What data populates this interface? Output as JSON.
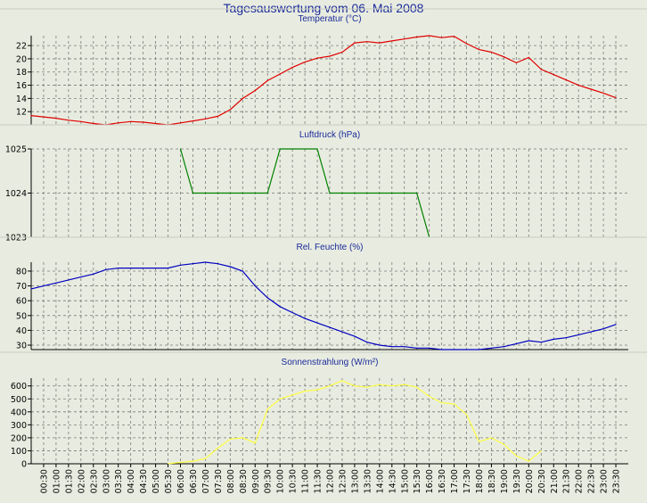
{
  "title": "Tagesauswertung vom 06. Mai 2008",
  "chart_data": [
    {
      "type": "line",
      "title": "Temperatur (°C)",
      "color": "#e00000",
      "ylim": [
        10,
        23.5
      ],
      "yticks": [
        12,
        14,
        16,
        18,
        20,
        22
      ],
      "x": [
        "00:00",
        "00:30",
        "01:00",
        "01:30",
        "02:00",
        "02:30",
        "03:00",
        "03:30",
        "04:00",
        "04:30",
        "05:00",
        "05:30",
        "06:00",
        "06:30",
        "07:00",
        "07:30",
        "08:00",
        "08:30",
        "09:00",
        "09:30",
        "10:00",
        "10:30",
        "11:00",
        "11:30",
        "12:00",
        "12:30",
        "13:00",
        "13:30",
        "14:00",
        "14:30",
        "15:00",
        "15:30",
        "16:00",
        "16:30",
        "17:00",
        "17:30",
        "18:00",
        "18:30",
        "19:00",
        "19:30",
        "20:00",
        "20:30",
        "21:00",
        "21:30",
        "22:00",
        "22:30",
        "23:00",
        "23:30"
      ],
      "values": [
        11.4,
        11.2,
        11.0,
        10.7,
        10.5,
        10.2,
        10.0,
        10.3,
        10.5,
        10.4,
        10.2,
        10.0,
        10.3,
        10.6,
        10.9,
        11.3,
        12.3,
        14.0,
        15.2,
        16.7,
        17.7,
        18.7,
        19.5,
        20.1,
        20.4,
        21.0,
        22.4,
        22.6,
        22.4,
        22.7,
        23.0,
        23.3,
        23.5,
        23.2,
        23.4,
        22.3,
        21.4,
        21.0,
        20.3,
        19.4,
        20.2,
        18.4,
        17.6,
        16.8,
        16.0,
        15.4,
        14.8,
        14.1
      ]
    },
    {
      "type": "line",
      "title": "Luftdruck (hPa)",
      "color": "#008000",
      "ylim": [
        1023,
        1025
      ],
      "yticks": [
        1023,
        1024,
        1025
      ],
      "x": [
        "06:00",
        "06:30",
        "07:00",
        "07:30",
        "08:00",
        "08:30",
        "09:00",
        "09:30",
        "10:00",
        "10:30",
        "11:00",
        "11:30",
        "12:00",
        "12:30",
        "13:00",
        "13:30",
        "14:00",
        "14:30",
        "15:00",
        "15:30",
        "16:00"
      ],
      "values": [
        1025,
        1024,
        1024,
        1024,
        1024,
        1024,
        1024,
        1024,
        1025,
        1025,
        1025,
        1025,
        1024,
        1024,
        1024,
        1024,
        1024,
        1024,
        1024,
        1024,
        1023
      ]
    },
    {
      "type": "line",
      "title": "Rel. Feuchte (%)",
      "color": "#0000c0",
      "ylim": [
        27,
        86
      ],
      "yticks": [
        30,
        40,
        50,
        60,
        70,
        80
      ],
      "x": [
        "00:00",
        "00:30",
        "01:00",
        "01:30",
        "02:00",
        "02:30",
        "03:00",
        "03:30",
        "04:00",
        "04:30",
        "05:00",
        "05:30",
        "06:00",
        "06:30",
        "07:00",
        "07:30",
        "08:00",
        "08:30",
        "09:00",
        "09:30",
        "10:00",
        "10:30",
        "11:00",
        "11:30",
        "12:00",
        "12:30",
        "13:00",
        "13:30",
        "14:00",
        "14:30",
        "15:00",
        "15:30",
        "16:00",
        "16:30",
        "17:00",
        "17:30",
        "18:00",
        "18:30",
        "19:00",
        "19:30",
        "20:00",
        "20:30",
        "21:00",
        "21:30",
        "22:00",
        "22:30",
        "23:00",
        "23:30"
      ],
      "values": [
        68,
        70,
        72,
        74,
        76,
        78,
        81,
        82,
        82,
        82,
        82,
        82,
        84,
        85,
        86,
        85,
        83,
        80,
        70,
        62,
        56,
        52,
        48,
        45,
        42,
        39,
        36,
        32,
        30,
        29,
        29,
        28,
        28,
        27,
        27,
        27,
        27,
        28,
        29,
        31,
        33,
        32,
        34,
        35,
        37,
        39,
        41,
        44
      ]
    },
    {
      "type": "line",
      "title": "Sonnenstrahlung (W/m²)",
      "color": "#ffff40",
      "ylim": [
        0,
        660
      ],
      "yticks": [
        0,
        100,
        200,
        300,
        400,
        500,
        600
      ],
      "x": [
        "05:30",
        "06:00",
        "06:30",
        "07:00",
        "07:30",
        "08:00",
        "08:30",
        "09:00",
        "09:30",
        "10:00",
        "10:30",
        "11:00",
        "11:30",
        "12:00",
        "12:30",
        "13:00",
        "13:30",
        "14:00",
        "14:30",
        "15:00",
        "15:30",
        "16:00",
        "16:30",
        "17:00",
        "17:30",
        "18:00",
        "18:30",
        "19:00",
        "19:30",
        "20:00",
        "20:30"
      ],
      "values": [
        0,
        10,
        20,
        40,
        120,
        190,
        200,
        160,
        420,
        500,
        530,
        560,
        570,
        600,
        640,
        600,
        590,
        610,
        600,
        610,
        590,
        520,
        470,
        460,
        380,
        170,
        200,
        150,
        60,
        20,
        100
      ]
    }
  ],
  "x_tick_labels": [
    "00:30",
    "01:00",
    "01:30",
    "02:00",
    "02:30",
    "03:00",
    "03:30",
    "04:00",
    "04:30",
    "05:00",
    "05:30",
    "06:00",
    "06:30",
    "07:00",
    "07:30",
    "08:00",
    "08:30",
    "09:00",
    "09:30",
    "10:00",
    "10:30",
    "11:00",
    "11:30",
    "12:00",
    "12:30",
    "13:00",
    "13:30",
    "14:00",
    "14:30",
    "15:00",
    "15:30",
    "16:00",
    "16:30",
    "17:00",
    "17:30",
    "18:00",
    "18:30",
    "19:00",
    "19:30",
    "20:00",
    "20:30",
    "21:00",
    "21:30",
    "22:00",
    "22:30",
    "23:00",
    "23:30"
  ]
}
